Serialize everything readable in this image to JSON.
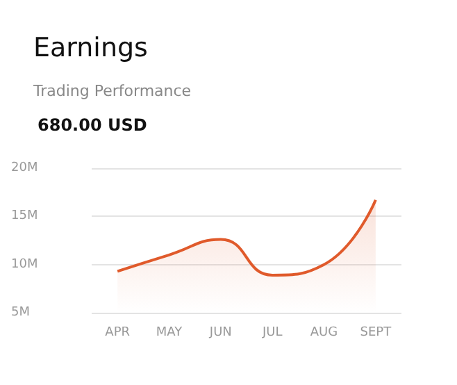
{
  "chart_data": {
    "type": "area",
    "title": "Earnings",
    "subtitle": "Trading Performance",
    "annotations": [
      "680.00 USD"
    ],
    "categories": [
      "APR",
      "MAY",
      "JUN",
      "JUL",
      "AUG",
      "SEPT"
    ],
    "values": [
      9.3,
      11.0,
      12.6,
      8.9,
      10.0,
      16.7
    ],
    "color": "#e05a2b",
    "ylim": [
      5,
      20
    ],
    "yticks": [
      {
        "value": 5,
        "label": "5M"
      },
      {
        "value": 10,
        "label": "10M"
      },
      {
        "value": 15,
        "label": "15M"
      },
      {
        "value": 20,
        "label": "20M"
      }
    ],
    "grid": "y"
  }
}
